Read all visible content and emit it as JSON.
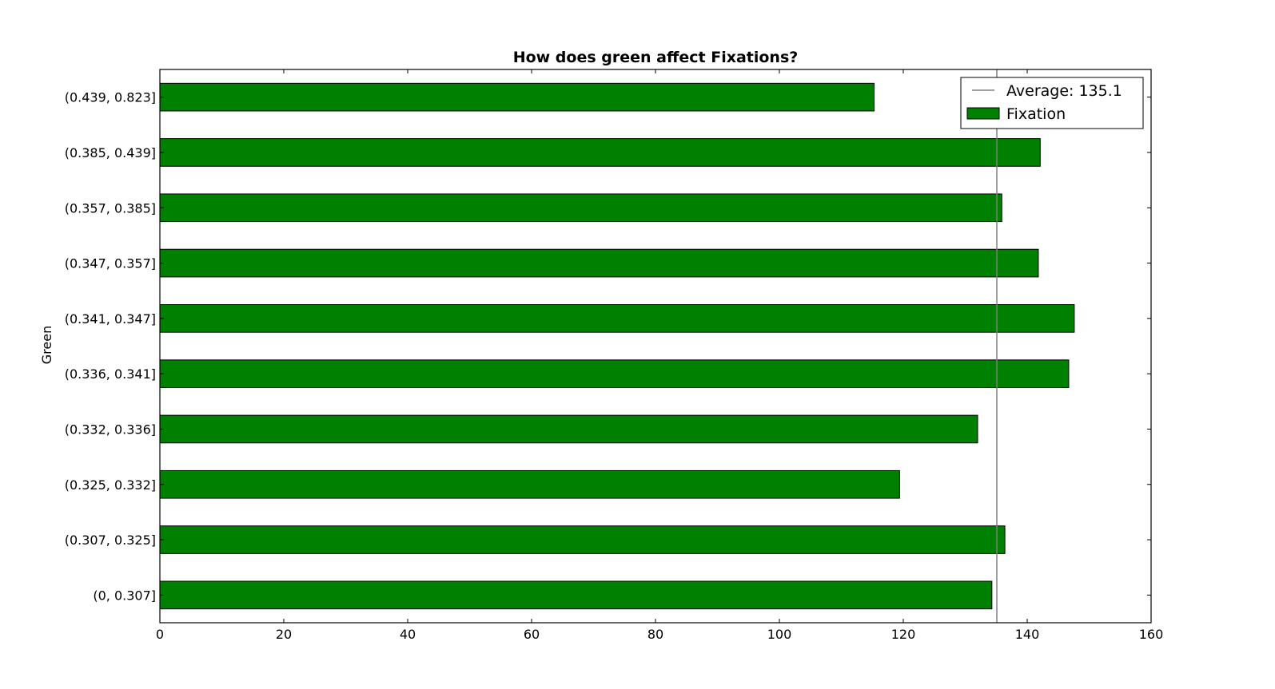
{
  "chart_data": {
    "type": "bar",
    "orientation": "horizontal",
    "title": "How does green affect Fixations?",
    "xlabel": "",
    "ylabel": "Green",
    "xlim": [
      0,
      160
    ],
    "xticks": [
      "0",
      "20",
      "40",
      "60",
      "80",
      "100",
      "120",
      "140",
      "160"
    ],
    "categories": [
      "(0, 0.307]",
      "(0.307, 0.325]",
      "(0.325, 0.332]",
      "(0.332, 0.336]",
      "(0.336, 0.341]",
      "(0.341, 0.347]",
      "(0.347, 0.357]",
      "(0.357, 0.385]",
      "(0.385, 0.439]",
      "(0.439, 0.823]"
    ],
    "series": [
      {
        "name": "Fixation",
        "color": "#008000",
        "values": [
          134.3,
          136.4,
          119.4,
          132.0,
          146.7,
          147.6,
          141.8,
          135.9,
          142.1,
          115.3
        ]
      }
    ],
    "average": {
      "value": 135.1,
      "label": "Average: 135.1",
      "color": "#808080"
    },
    "legend": {
      "position": "top-right",
      "entries": [
        "Average: 135.1",
        "Fixation"
      ]
    },
    "grid": false
  }
}
